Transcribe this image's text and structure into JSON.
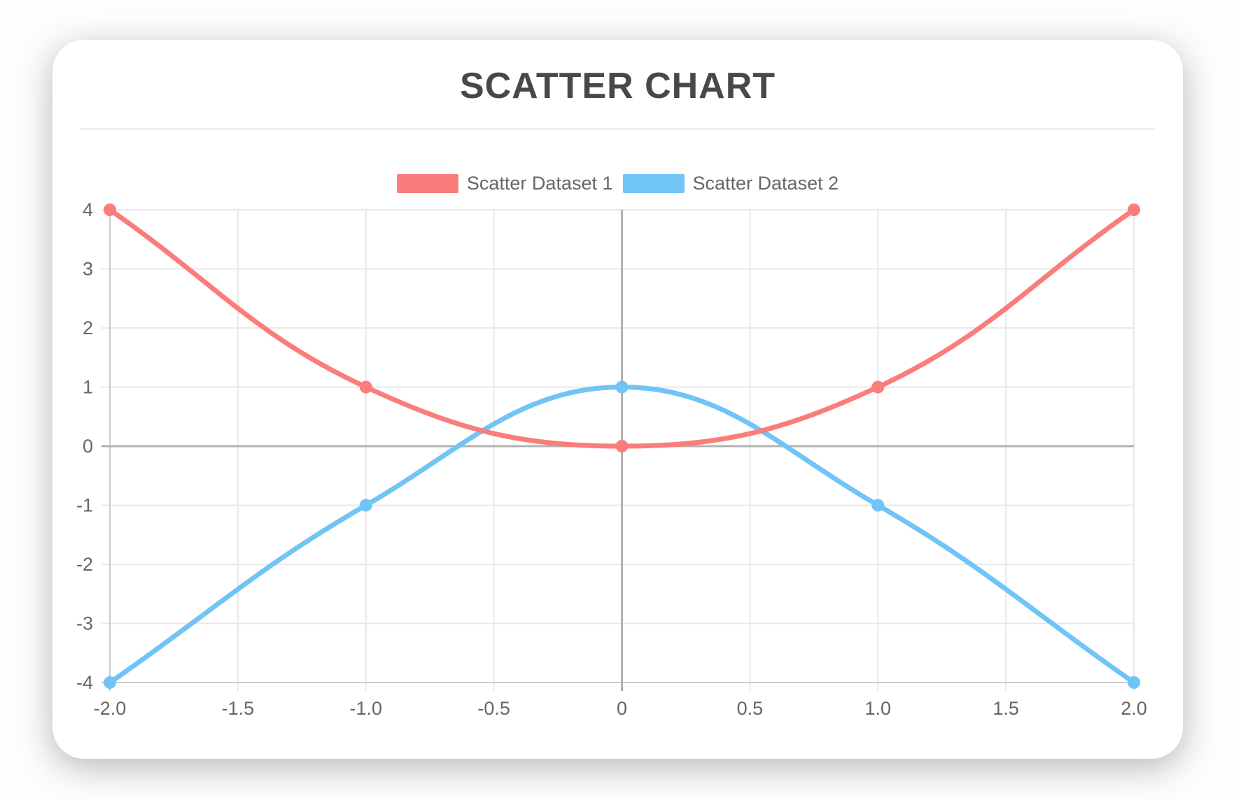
{
  "card": {
    "title": "SCATTER CHART"
  },
  "chart_data": {
    "type": "scatter",
    "title": "SCATTER CHART",
    "legend_position": "top",
    "grid": true,
    "xlim": [
      -2.0,
      2.0
    ],
    "ylim": [
      -4,
      4
    ],
    "x_ticks": [
      -2.0,
      -1.5,
      -1.0,
      -0.5,
      0,
      0.5,
      1.0,
      1.5,
      2.0
    ],
    "x_tick_labels": [
      "-2.0",
      "-1.5",
      "-1.0",
      "-0.5",
      "0",
      "0.5",
      "1.0",
      "1.5",
      "2.0"
    ],
    "y_ticks": [
      4,
      3,
      2,
      1,
      0,
      -1,
      -2,
      -3,
      -4
    ],
    "y_tick_labels": [
      "4",
      "3",
      "2",
      "1",
      "0",
      "-1",
      "-2",
      "-3",
      "-4"
    ],
    "line_tension": 0.4,
    "series": [
      {
        "name": "Scatter Dataset 1",
        "color": "#fa7d7b",
        "points": [
          [
            -2,
            4
          ],
          [
            -1,
            1
          ],
          [
            0,
            0
          ],
          [
            1,
            1
          ],
          [
            2,
            4
          ]
        ]
      },
      {
        "name": "Scatter Dataset 2",
        "color": "#70c4f6",
        "points": [
          [
            -2,
            -4
          ],
          [
            -1,
            -1
          ],
          [
            0,
            1
          ],
          [
            1,
            -1
          ],
          [
            2,
            -4
          ]
        ]
      }
    ],
    "style": {
      "grid_color": "#e8e8e8",
      "zero_line_color": "#b2b2b2",
      "axis_border_color": "#cccccc",
      "tick_label_color": "#666666",
      "title_color": "#484848",
      "legend_text_color": "#666666",
      "card_background": "#ffffff",
      "line_width": 7,
      "point_radius": 9,
      "tick_length": 12
    }
  }
}
